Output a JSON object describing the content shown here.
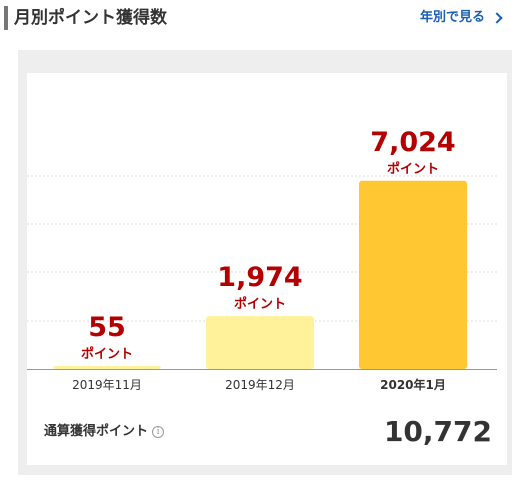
{
  "header": {
    "title": "月別ポイント獲得数",
    "yearly_link": "年別で見る"
  },
  "colors": {
    "bar_light": "#fff29a",
    "bar_active": "#ffc832",
    "value_red": "#b30000",
    "link_blue": "#1a5fb4"
  },
  "chart_data": {
    "type": "bar",
    "categories": [
      "2019年11月",
      "2019年12月",
      "2020年1月"
    ],
    "values": [
      55,
      1974,
      7024
    ],
    "value_labels": [
      "55",
      "1,974",
      "7,024"
    ],
    "unit_label": "ポイント",
    "highlighted_index": 2,
    "ylim": [
      0,
      7500
    ],
    "grid": true
  },
  "total": {
    "label": "通算獲得ポイント",
    "info_icon": "info-icon",
    "value": "10,772"
  }
}
